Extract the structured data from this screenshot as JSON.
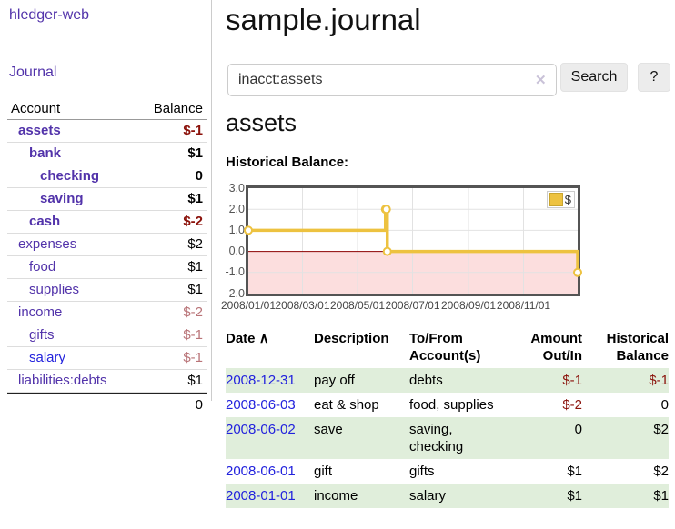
{
  "colors": {
    "link_purple": "#5233aa",
    "link_blue": "#2222dd",
    "negative_red": "#8b120b",
    "muted_rose": "#b97478",
    "stripe_green": "#e0eedb",
    "series_gold": "#edc240",
    "negative_region_pink": "#fcdede",
    "zero_line_red": "#8b0000"
  },
  "sidebar": {
    "app_title": "hledger-web",
    "journal_link": "Journal",
    "accounts": {
      "headers": {
        "account": "Account",
        "balance": "Balance"
      },
      "rows": [
        {
          "name": "assets",
          "balance": "$-1",
          "level": 1,
          "bold": true,
          "balance_color": "neg"
        },
        {
          "name": "bank",
          "balance": "$1",
          "level": 2,
          "bold": true,
          "balance_color": ""
        },
        {
          "name": "checking",
          "balance": "0",
          "level": 3,
          "bold": true,
          "balance_color": ""
        },
        {
          "name": "saving",
          "balance": "$1",
          "level": 3,
          "bold": true,
          "balance_color": ""
        },
        {
          "name": "cash",
          "balance": "$-2",
          "level": 2,
          "bold": true,
          "balance_color": "neg"
        },
        {
          "name": "expenses",
          "balance": "$2",
          "level": 1,
          "bold": false,
          "balance_color": ""
        },
        {
          "name": "food",
          "balance": "$1",
          "level": 2,
          "bold": false,
          "balance_color": ""
        },
        {
          "name": "supplies",
          "balance": "$1",
          "level": 2,
          "bold": false,
          "balance_color": ""
        },
        {
          "name": "income",
          "balance": "$-2",
          "level": 1,
          "bold": false,
          "balance_color": "rose"
        },
        {
          "name": "gifts",
          "balance": "$-1",
          "level": 2,
          "bold": false,
          "balance_color": "rose"
        },
        {
          "name": "salary",
          "balance": "$-1",
          "level": 2,
          "bold": false,
          "balance_color": "rose",
          "blue": true
        },
        {
          "name": "liabilities:debts",
          "balance": "$1",
          "level": 1,
          "bold": false,
          "balance_color": ""
        }
      ],
      "total": "0"
    }
  },
  "main": {
    "title": "sample.journal",
    "search": {
      "value": "inacct:assets",
      "clear_icon": "✕",
      "button": "Search",
      "help_button": "?"
    },
    "account_heading": "assets",
    "chart_label": "Historical Balance:"
  },
  "chart_data": {
    "type": "line",
    "style": "step",
    "title": "Historical Balance:",
    "series": [
      {
        "name": "$",
        "color": "#edc240",
        "points": [
          [
            "2008-01-01",
            1
          ],
          [
            "2008-06-01",
            2
          ],
          [
            "2008-06-02",
            2
          ],
          [
            "2008-06-03",
            0
          ],
          [
            "2008-12-31",
            -1
          ]
        ]
      }
    ],
    "x_range": [
      "2008-01-01",
      "2008-12-31"
    ],
    "xticks": [
      "2008/01/01",
      "2008/03/01",
      "2008/05/01",
      "2008/07/01",
      "2008/09/01",
      "2008/11/01"
    ],
    "yticks": [
      "3.0",
      "2.0",
      "1.0",
      "0.0",
      "-1.0",
      "-2.0"
    ],
    "ylim": [
      -2,
      3
    ],
    "grid": true,
    "legend_position": "top-right",
    "negative_region": [
      0,
      -2
    ]
  },
  "register": {
    "sort_arrow": "∧",
    "headers": [
      "Date",
      "Description",
      "To/From Account(s)",
      "Amount Out/In",
      "Historical Balance"
    ],
    "rows": [
      {
        "date": "2008-12-31",
        "description": "pay off",
        "accounts": "debts",
        "amount": "$-1",
        "amount_neg": true,
        "balance": "$-1",
        "balance_neg": true,
        "striped": true
      },
      {
        "date": "2008-06-03",
        "description": "eat & shop",
        "accounts": "food, supplies",
        "amount": "$-2",
        "amount_neg": true,
        "balance": "0",
        "balance_neg": false,
        "striped": false
      },
      {
        "date": "2008-06-02",
        "description": "save",
        "accounts": "saving,\nchecking",
        "amount": "0",
        "amount_neg": false,
        "balance": "$2",
        "balance_neg": false,
        "striped": true
      },
      {
        "date": "2008-06-01",
        "description": "gift",
        "accounts": "gifts",
        "amount": "$1",
        "amount_neg": false,
        "balance": "$2",
        "balance_neg": false,
        "striped": false
      },
      {
        "date": "2008-01-01",
        "description": "income",
        "accounts": "salary",
        "amount": "$1",
        "amount_neg": false,
        "balance": "$1",
        "balance_neg": false,
        "striped": true
      }
    ]
  }
}
